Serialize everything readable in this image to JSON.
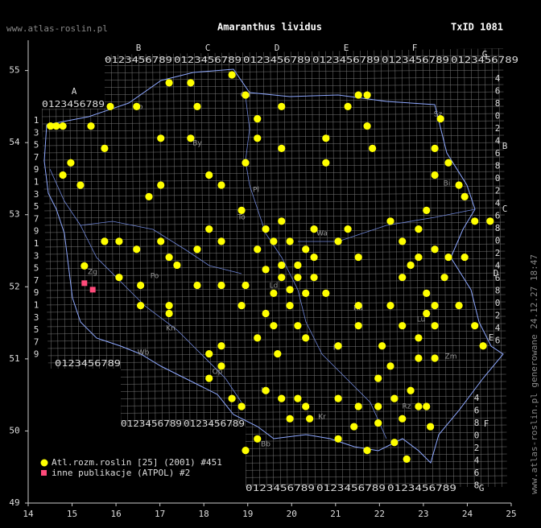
{
  "header": {
    "site": "www.atlas-roslin.pl",
    "txid": "TxID 1081",
    "generated": "www.atlas-roslin.pl generowane 24.12.27 18:47"
  },
  "atpol": {
    "letters": [
      "A",
      "B",
      "C",
      "D",
      "E",
      "F",
      "G"
    ],
    "digits": "0123456789",
    "odd": [
      "1",
      "3",
      "5",
      "7",
      "9"
    ],
    "even": [
      "0",
      "2",
      "4",
      "6",
      "8"
    ]
  },
  "map_labels": [
    "Gd",
    "Ol",
    "Sz",
    "Bi",
    "By",
    "To",
    "Pl",
    "Ko",
    "Po",
    "Wa",
    "Ld",
    "Rd",
    "Lu",
    "Ki",
    "Zm",
    "Wb",
    "Op",
    "Ka",
    "Kr",
    "Rz",
    "Bb",
    "Kn",
    "Zg"
  ],
  "chart_data": {
    "type": "scatter",
    "title": "Amaranthus lividus",
    "xlim": [
      14,
      25.0
    ],
    "ylim": [
      49,
      55.42
    ],
    "xticks": [
      14,
      15,
      16,
      17,
      18,
      19,
      20,
      21,
      22,
      23,
      24,
      25
    ],
    "yticks": [
      49,
      50,
      51,
      52,
      53,
      54,
      55
    ],
    "series": [
      {
        "name": "Atl.rozm.roslin [25] (2001) #451",
        "color": "#ffff00",
        "x": [
          14.51,
          14.64,
          14.79,
          15.43,
          15.74,
          14.79,
          14.97,
          15.19,
          16.47,
          15.87,
          17.21,
          17.7,
          17.85,
          18.64,
          18.95,
          17.02,
          17.7,
          19.22,
          19.77,
          19.22,
          19.77,
          20.78,
          21.28,
          21.52,
          21.72,
          21.72,
          21.84,
          20.78,
          23.39,
          23.26,
          23.26,
          23.57,
          23.81,
          23.94,
          24.17,
          24.52,
          23.07,
          22.89,
          22.25,
          22.52,
          22.89,
          23.26,
          23.57,
          23.94,
          24.17,
          24.36,
          23.81,
          23.26,
          23.26,
          22.89,
          22.52,
          22.25,
          21.52,
          21.52,
          22.71,
          22.52,
          23.07,
          21.52,
          21.06,
          21.28,
          20.51,
          19.77,
          19.41,
          18.86,
          18.4,
          18.12,
          18.95,
          16.75,
          17.02,
          16.07,
          16.47,
          17.02,
          17.21,
          17.85,
          18.12,
          18.4,
          19.22,
          19.59,
          19.96,
          20.32,
          20.51,
          19.77,
          20.14,
          19.41,
          19.77,
          20.14,
          20.51,
          19.59,
          19.96,
          18.95,
          18.4,
          17.85,
          17.39,
          17.21,
          16.56,
          16.56,
          17.21,
          16.07,
          15.74,
          15.28,
          18.86,
          19.41,
          19.96,
          20.32,
          20.78,
          19.22,
          19.59,
          20.14,
          19.68,
          18.4,
          18.12,
          18.4,
          18.64,
          18.86,
          19.41,
          19.77,
          20.14,
          20.32,
          20.41,
          19.96,
          21.06,
          21.52,
          21.97,
          22.34,
          22.71,
          22.89,
          22.52,
          21.97,
          21.42,
          21.06,
          22.34,
          22.62,
          21.72,
          21.97,
          22.25,
          22.89,
          23.07,
          23.16,
          18.95,
          19.22,
          21.06,
          22.06,
          23.48,
          23.07,
          23.26,
          20.32,
          18.12
        ],
        "values": [
          54.23,
          54.23,
          54.23,
          54.23,
          53.92,
          53.55,
          53.72,
          53.41,
          54.5,
          54.5,
          54.83,
          54.83,
          54.5,
          54.94,
          54.66,
          54.06,
          54.06,
          54.33,
          54.5,
          54.06,
          53.92,
          54.06,
          54.5,
          54.66,
          54.66,
          54.23,
          53.92,
          53.72,
          54.33,
          53.92,
          53.55,
          53.72,
          53.41,
          53.25,
          52.91,
          52.91,
          53.06,
          52.8,
          52.91,
          52.63,
          52.41,
          52.52,
          52.41,
          52.41,
          51.46,
          51.18,
          51.74,
          51.46,
          51.01,
          51.29,
          51.46,
          51.74,
          51.46,
          51.74,
          52.3,
          52.13,
          51.91,
          52.41,
          52.63,
          52.8,
          52.8,
          52.91,
          52.8,
          53.06,
          53.41,
          53.55,
          53.72,
          53.25,
          53.41,
          52.63,
          52.52,
          52.63,
          52.41,
          52.52,
          52.8,
          52.63,
          52.52,
          52.63,
          52.63,
          52.52,
          52.41,
          52.3,
          52.3,
          52.24,
          52.13,
          52.13,
          52.13,
          51.91,
          51.96,
          52.02,
          52.02,
          52.02,
          52.3,
          51.74,
          52.02,
          51.74,
          51.63,
          52.13,
          52.63,
          52.29,
          51.74,
          51.63,
          51.74,
          51.91,
          51.91,
          51.29,
          51.46,
          51.46,
          51.07,
          51.18,
          50.73,
          50.9,
          50.45,
          50.34,
          50.56,
          50.45,
          50.45,
          50.34,
          50.17,
          50.17,
          50.45,
          50.34,
          50.34,
          50.45,
          50.56,
          50.34,
          50.17,
          50.11,
          50.06,
          49.89,
          49.84,
          49.61,
          49.73,
          50.73,
          50.9,
          51.01,
          50.34,
          50.06,
          49.73,
          49.89,
          51.18,
          51.18,
          52.13,
          51.63,
          51.74,
          51.29,
          51.07
        ]
      },
      {
        "name": "inne publikacje (ATPOL) #2",
        "color": "#ff4a7a",
        "x": [
          15.28,
          15.47
        ],
        "values": [
          52.05,
          51.96
        ]
      }
    ]
  }
}
